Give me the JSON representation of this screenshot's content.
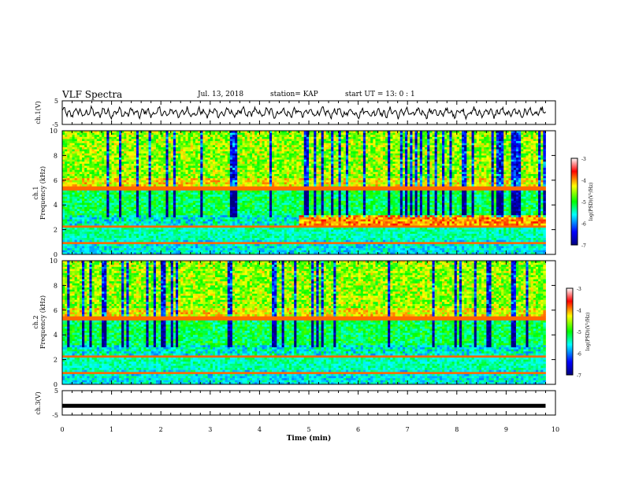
{
  "header": {
    "title": "VLF Spectra",
    "date": "Jul. 13, 2018",
    "station": "station= KAP",
    "start": "start UT =  13: 0  : 1"
  },
  "chart_data": [
    {
      "type": "line",
      "panel": "ch1-waveform",
      "ylabel": "ch.1(V)",
      "ylim": [
        -5,
        5
      ],
      "yticks": [
        "5",
        "-5"
      ],
      "xlim": [
        0,
        10
      ],
      "color": "#000000",
      "description_values": "oscillating waveform between about -2 and 2 V over 0-9.8 min"
    },
    {
      "type": "heatmap",
      "panel": "ch1-spectrogram",
      "ylabel_line1": "ch.1",
      "ylabel_line2": "Frequency (kHz)",
      "ylim": [
        0,
        10
      ],
      "yticks": [
        "0",
        "2",
        "4",
        "6",
        "8",
        "10"
      ],
      "xlim": [
        0,
        10
      ],
      "colorbar": {
        "label": "log(PSD)(V²/Hz)",
        "range": [
          -7,
          -3
        ],
        "ticks": [
          "-3",
          "-4",
          "-5",
          "-6",
          "-7"
        ],
        "colors": [
          "#00007f",
          "#0000ff",
          "#00ffff",
          "#00ff00",
          "#ffff00",
          "#ff0000",
          "#ffffff"
        ]
      }
    },
    {
      "type": "heatmap",
      "panel": "ch2-spectrogram",
      "ylabel_line1": "ch.2",
      "ylabel_line2": "Frequency (kHz)",
      "ylim": [
        0,
        10
      ],
      "yticks": [
        "0",
        "2",
        "4",
        "6",
        "8",
        "10"
      ],
      "xlim": [
        0,
        10
      ],
      "colorbar": {
        "label": "log(PSD)(V²/Hz)",
        "range": [
          -7,
          -3
        ],
        "ticks": [
          "-3",
          "-4",
          "-5",
          "-6",
          "-7"
        ]
      }
    },
    {
      "type": "line",
      "panel": "ch3-waveform",
      "ylabel": "ch.3(V)",
      "ylim": [
        -5,
        5
      ],
      "yticks": [
        "5",
        "0",
        "-5"
      ],
      "xlim": [
        0,
        10
      ],
      "constant_value": -1.2,
      "color": "#000000"
    }
  ],
  "xaxis": {
    "label": "Time (min)",
    "ticks": [
      "0",
      "1",
      "2",
      "3",
      "4",
      "5",
      "6",
      "7",
      "8",
      "9",
      "10"
    ]
  }
}
